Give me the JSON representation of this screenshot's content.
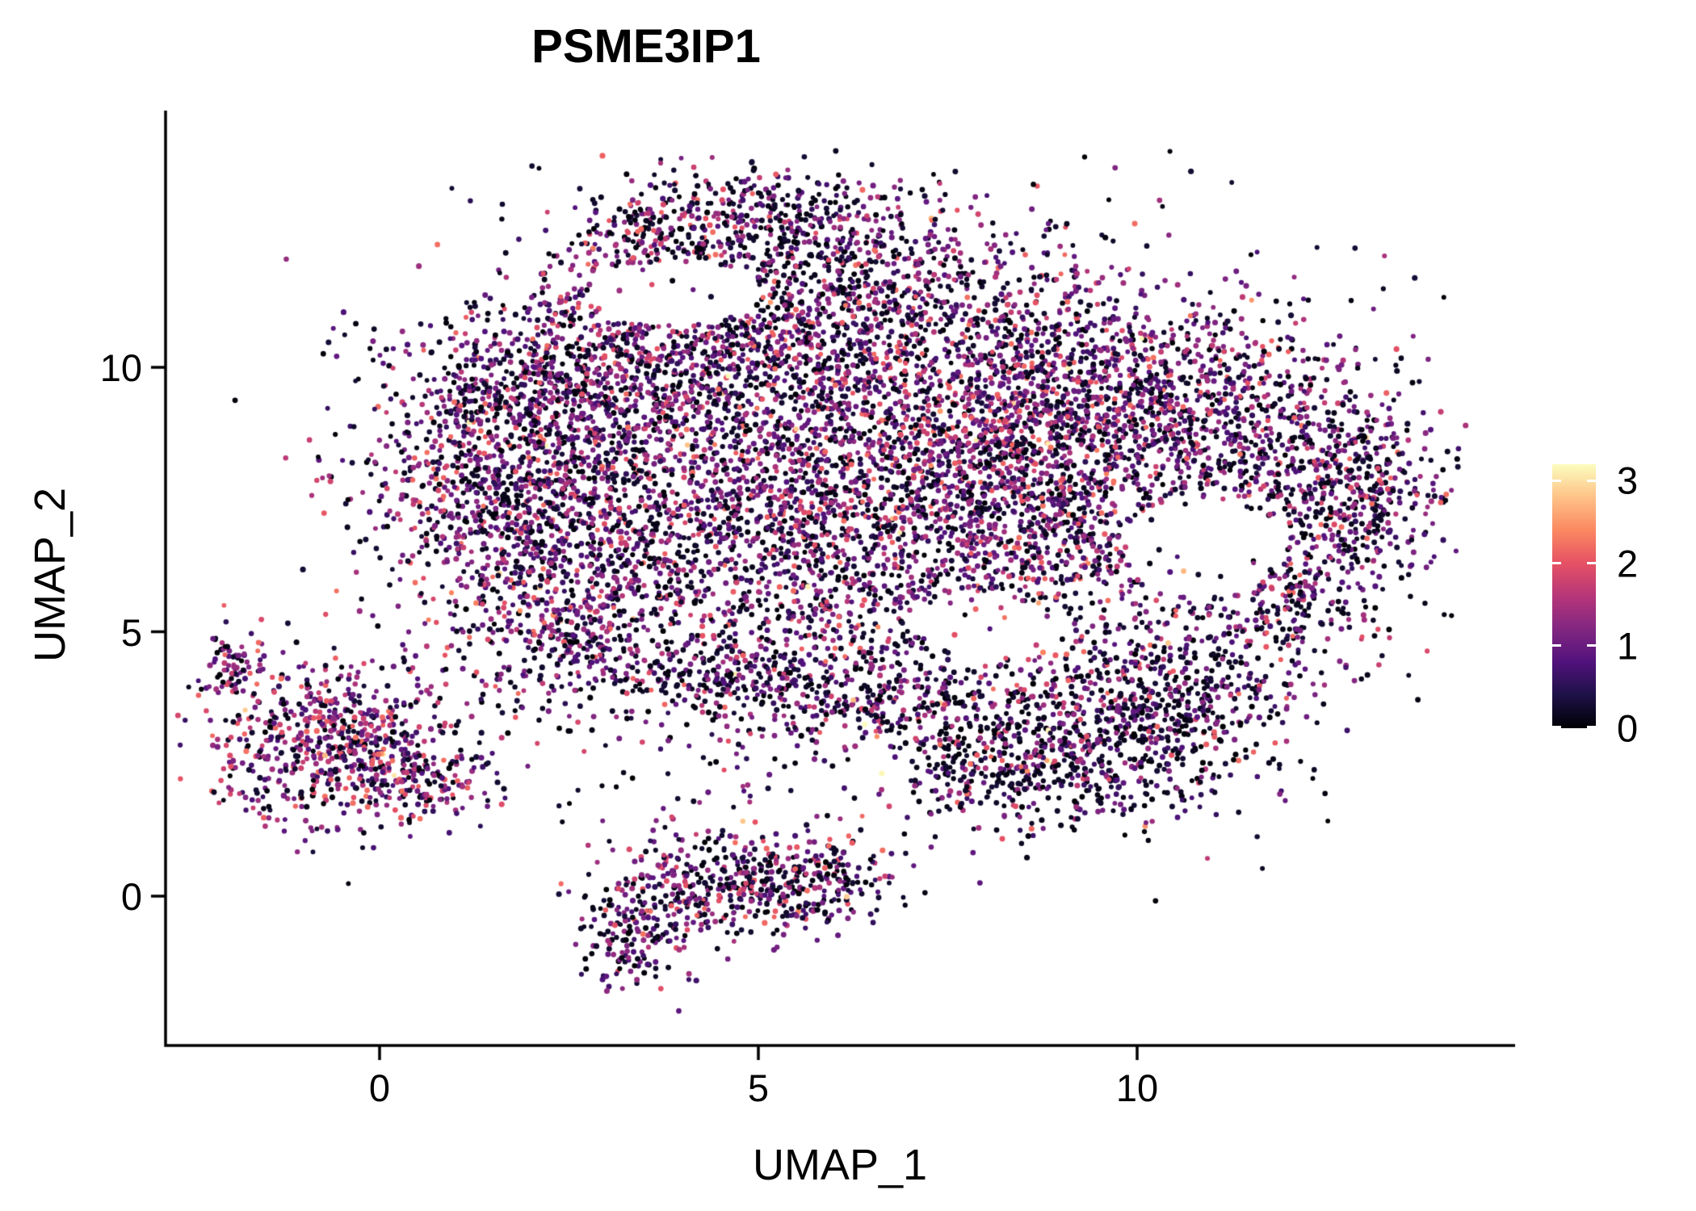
{
  "title": "PSME3IP1",
  "axes": {
    "x": {
      "label": "UMAP_1",
      "ticks": [
        {
          "v": 0,
          "label": "0"
        },
        {
          "v": 5,
          "label": "5"
        },
        {
          "v": 10,
          "label": "10"
        }
      ]
    },
    "y": {
      "label": "UMAP_2",
      "ticks": [
        {
          "v": 0,
          "label": "0"
        },
        {
          "v": 5,
          "label": "5"
        },
        {
          "v": 10,
          "label": "10"
        }
      ]
    }
  },
  "legend": {
    "position": "right",
    "labels": [
      {
        "v": 3,
        "label": "3"
      },
      {
        "v": 2,
        "label": "2"
      },
      {
        "v": 1,
        "label": "1"
      },
      {
        "v": 0,
        "label": "0"
      }
    ]
  },
  "colors": {
    "background": "#ffffff",
    "axis": "#000000",
    "text": "#000000",
    "colormap": [
      [
        0.0,
        "#000004"
      ],
      [
        0.125,
        "#1d1147"
      ],
      [
        0.25,
        "#51127c"
      ],
      [
        0.375,
        "#822681"
      ],
      [
        0.5,
        "#b63679"
      ],
      [
        0.625,
        "#e65164"
      ],
      [
        0.75,
        "#fb8861"
      ],
      [
        0.875,
        "#fec287"
      ],
      [
        1.0,
        "#fcfdbf"
      ]
    ]
  },
  "chart_data": {
    "type": "scatter",
    "title": "PSME3IP1",
    "xlabel": "UMAP_1",
    "ylabel": "UMAP_2",
    "xlim": [
      -2.8,
      15.0
    ],
    "ylim": [
      -2.8,
      14.9
    ],
    "x_ticks": [
      0,
      5,
      10
    ],
    "y_ticks": [
      0,
      5,
      10
    ],
    "grid": false,
    "legend_position": "right",
    "colorbar": {
      "min": 0,
      "max": 3.2,
      "label_values": [
        0,
        1,
        2,
        3
      ],
      "palette": "magma"
    },
    "n_points_approx": 13000,
    "value_bands": [
      [
        0.0,
        0.32
      ],
      [
        0.5,
        1.45
      ],
      [
        1.45,
        2.25
      ],
      [
        2.3,
        3.2
      ]
    ],
    "expr_profiles": {
      "default": [
        0.38,
        0.44,
        0.175,
        0.005
      ],
      "bright": [
        0.32,
        0.45,
        0.22,
        0.01
      ],
      "dark": [
        0.47,
        0.39,
        0.135,
        0.005
      ],
      "darker": [
        0.56,
        0.32,
        0.115,
        0.005
      ],
      "left": [
        0.28,
        0.46,
        0.245,
        0.015
      ],
      "bottom": [
        0.42,
        0.42,
        0.155,
        0.005
      ]
    },
    "clusters": [
      {
        "x": 1.4,
        "y": 8.2,
        "sx": 0.9,
        "sy": 1.2,
        "n": 650,
        "w": "default"
      },
      {
        "x": 2.6,
        "y": 9.6,
        "sx": 1.0,
        "sy": 1.0,
        "n": 550,
        "w": "default"
      },
      {
        "x": 2.2,
        "y": 6.8,
        "sx": 0.8,
        "sy": 0.9,
        "n": 400,
        "w": "default"
      },
      {
        "x": 3.9,
        "y": 10.4,
        "sx": 1.1,
        "sy": 0.9,
        "n": 550,
        "w": "default"
      },
      {
        "x": 5.0,
        "y": 12.9,
        "sx": 1.1,
        "sy": 0.45,
        "n": 330,
        "w": "dark"
      },
      {
        "x": 3.4,
        "y": 12.3,
        "sx": 0.55,
        "sy": 0.45,
        "n": 160,
        "w": "dark"
      },
      {
        "x": 6.3,
        "y": 11.6,
        "sx": 1.0,
        "sy": 0.8,
        "n": 420,
        "w": "default"
      },
      {
        "x": 5.6,
        "y": 9.2,
        "sx": 1.4,
        "sy": 1.3,
        "n": 850,
        "w": "default"
      },
      {
        "x": 4.2,
        "y": 7.2,
        "sx": 1.2,
        "sy": 1.0,
        "n": 550,
        "w": "default"
      },
      {
        "x": 6.3,
        "y": 6.3,
        "sx": 1.2,
        "sy": 1.0,
        "n": 500,
        "w": "default"
      },
      {
        "x": 7.8,
        "y": 8.0,
        "sx": 1.0,
        "sy": 1.0,
        "n": 550,
        "w": "bright"
      },
      {
        "x": 8.8,
        "y": 9.6,
        "sx": 1.2,
        "sy": 1.1,
        "n": 700,
        "w": "bright"
      },
      {
        "x": 10.6,
        "y": 9.3,
        "sx": 1.1,
        "sy": 0.9,
        "n": 520,
        "w": "default"
      },
      {
        "x": 12.1,
        "y": 8.3,
        "sx": 0.8,
        "sy": 0.9,
        "n": 380,
        "w": "dark"
      },
      {
        "x": 13.1,
        "y": 7.4,
        "sx": 0.45,
        "sy": 0.75,
        "n": 220,
        "w": "dark"
      },
      {
        "x": 9.3,
        "y": 6.6,
        "sx": 0.9,
        "sy": 0.8,
        "n": 400,
        "w": "default"
      },
      {
        "x": 11.9,
        "y": 5.6,
        "sx": 0.7,
        "sy": 0.7,
        "n": 240,
        "w": "dark"
      },
      {
        "x": 2.7,
        "y": 5.1,
        "sx": 0.8,
        "sy": 0.6,
        "n": 260,
        "w": "default"
      },
      {
        "x": 4.6,
        "y": 4.1,
        "sx": 1.1,
        "sy": 0.45,
        "n": 280,
        "w": "dark"
      },
      {
        "x": 6.6,
        "y": 3.7,
        "sx": 1.1,
        "sy": 0.45,
        "n": 280,
        "w": "dark"
      },
      {
        "x": 9.4,
        "y": 2.9,
        "sx": 1.1,
        "sy": 0.85,
        "n": 650,
        "w": "darker"
      },
      {
        "x": 10.7,
        "y": 3.9,
        "sx": 0.75,
        "sy": 0.75,
        "n": 330,
        "w": "darker"
      },
      {
        "x": 8.0,
        "y": 2.4,
        "sx": 0.6,
        "sy": 0.45,
        "n": 160,
        "w": "darker"
      },
      {
        "x": -0.7,
        "y": 2.9,
        "sx": 0.85,
        "sy": 0.8,
        "n": 620,
        "w": "left"
      },
      {
        "x": 0.5,
        "y": 2.2,
        "sx": 0.5,
        "sy": 0.4,
        "n": 150,
        "w": "left"
      },
      {
        "x": -1.9,
        "y": 4.4,
        "sx": 0.2,
        "sy": 0.35,
        "n": 70,
        "w": "left"
      },
      {
        "x": 4.4,
        "y": 0.2,
        "sx": 0.75,
        "sy": 0.5,
        "n": 330,
        "w": "bottom"
      },
      {
        "x": 5.7,
        "y": 0.35,
        "sx": 0.55,
        "sy": 0.45,
        "n": 220,
        "w": "bottom"
      },
      {
        "x": 3.3,
        "y": -0.8,
        "sx": 0.4,
        "sy": 0.5,
        "n": 150,
        "w": "bottom"
      },
      {
        "x": 6.0,
        "y": 7.5,
        "sx": 3.2,
        "sy": 2.6,
        "n": 500,
        "w": "default"
      },
      {
        "x": 7.0,
        "y": 10.8,
        "sx": 2.6,
        "sy": 1.3,
        "n": 380,
        "w": "dark"
      },
      {
        "x": 10.0,
        "y": 7.8,
        "sx": 1.8,
        "sy": 1.6,
        "n": 380,
        "w": "default"
      },
      {
        "x": 6.0,
        "y": 4.8,
        "sx": 2.6,
        "sy": 0.8,
        "n": 200,
        "w": "dark"
      },
      {
        "x": 5.0,
        "y": 2.0,
        "sx": 1.5,
        "sy": 1.0,
        "n": 60,
        "w": "dark"
      },
      {
        "x": 1.5,
        "y": 3.6,
        "sx": 1.0,
        "sy": 0.6,
        "n": 60,
        "w": "dark"
      }
    ],
    "holes": [
      {
        "x": 10.85,
        "y": 6.6,
        "rx": 1.0,
        "ry": 0.95
      },
      {
        "x": 3.9,
        "y": 11.4,
        "rx": 1.15,
        "ry": 0.6
      },
      {
        "x": 7.9,
        "y": 5.15,
        "rx": 0.85,
        "ry": 0.6
      }
    ]
  }
}
